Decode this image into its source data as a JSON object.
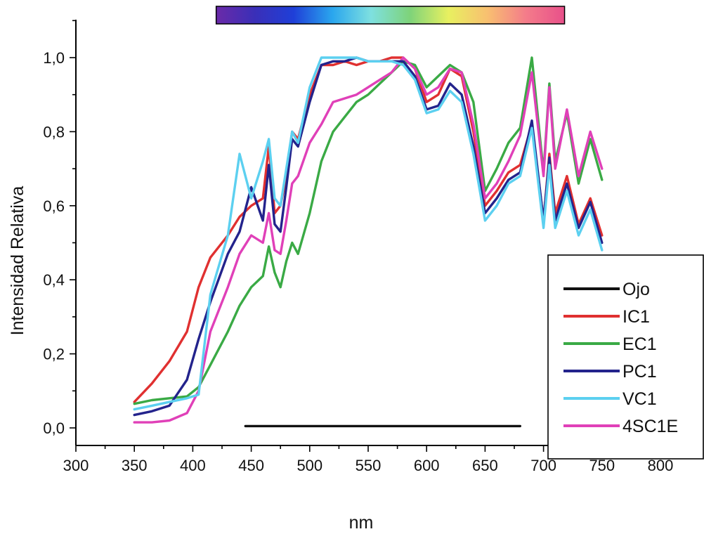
{
  "chart_data": {
    "type": "line",
    "title": "",
    "xlabel": "nm",
    "ylabel": "Intensidad Relativa",
    "xlim": [
      300,
      800
    ],
    "ylim": [
      -0.1,
      1.1
    ],
    "xticks": [
      300,
      350,
      400,
      450,
      500,
      550,
      600,
      650,
      700,
      750,
      800
    ],
    "xtick_labels": [
      "300",
      "350",
      "400",
      "450",
      "500",
      "550",
      "600",
      "650",
      "700",
      "750",
      "800"
    ],
    "yticks": [
      0.0,
      0.2,
      0.4,
      0.6,
      0.8,
      1.0
    ],
    "ytick_labels": [
      "0,0",
      "0,2",
      "0,4",
      "0,6",
      "0,8",
      "1,0"
    ],
    "legend_position": "bottom-right",
    "spectrum_bar": {
      "x_range": [
        420,
        718
      ],
      "colors": [
        "#6a2aa8",
        "#3a2fb8",
        "#1f3fd8",
        "#2aa6ee",
        "#7ee0e0",
        "#7ed37a",
        "#e8f060",
        "#f8c070",
        "#f47c8a",
        "#e8508a"
      ]
    },
    "series": [
      {
        "name": "Ojo",
        "color": "#111111",
        "x": [
          445,
          680
        ],
        "y": [
          0.005,
          0.005
        ]
      },
      {
        "name": "IC1",
        "color": "#e03030",
        "x": [
          350,
          365,
          380,
          395,
          405,
          415,
          430,
          440,
          450,
          460,
          465,
          470,
          475,
          480,
          485,
          490,
          500,
          510,
          520,
          530,
          540,
          550,
          560,
          570,
          580,
          590,
          600,
          610,
          620,
          630,
          640,
          650,
          660,
          670,
          680,
          690,
          700,
          705,
          710,
          720,
          730,
          740,
          750
        ],
        "y": [
          0.07,
          0.12,
          0.18,
          0.26,
          0.38,
          0.46,
          0.52,
          0.57,
          0.6,
          0.62,
          0.76,
          0.58,
          0.6,
          0.68,
          0.8,
          0.78,
          0.9,
          0.98,
          0.98,
          0.99,
          0.98,
          0.99,
          0.99,
          1.0,
          1.0,
          0.97,
          0.88,
          0.9,
          0.97,
          0.95,
          0.8,
          0.6,
          0.64,
          0.69,
          0.71,
          0.82,
          0.56,
          0.74,
          0.58,
          0.68,
          0.55,
          0.62,
          0.52
        ]
      },
      {
        "name": "EC1",
        "color": "#3aaa45",
        "x": [
          350,
          365,
          380,
          395,
          405,
          415,
          430,
          440,
          450,
          460,
          465,
          470,
          475,
          480,
          485,
          490,
          500,
          510,
          520,
          530,
          540,
          550,
          560,
          570,
          580,
          590,
          600,
          610,
          620,
          630,
          640,
          650,
          660,
          670,
          680,
          690,
          700,
          705,
          710,
          720,
          730,
          740,
          750
        ],
        "y": [
          0.065,
          0.075,
          0.08,
          0.085,
          0.11,
          0.17,
          0.26,
          0.33,
          0.38,
          0.41,
          0.49,
          0.42,
          0.38,
          0.45,
          0.5,
          0.47,
          0.58,
          0.72,
          0.8,
          0.84,
          0.88,
          0.9,
          0.93,
          0.96,
          0.99,
          0.98,
          0.92,
          0.95,
          0.98,
          0.96,
          0.88,
          0.64,
          0.7,
          0.77,
          0.81,
          1.0,
          0.69,
          0.93,
          0.72,
          0.85,
          0.66,
          0.78,
          0.67
        ]
      },
      {
        "name": "PC1",
        "color": "#23238c",
        "x": [
          350,
          365,
          380,
          395,
          405,
          415,
          430,
          440,
          450,
          460,
          465,
          470,
          475,
          480,
          485,
          490,
          500,
          510,
          520,
          530,
          540,
          550,
          560,
          570,
          580,
          590,
          600,
          610,
          620,
          630,
          640,
          650,
          660,
          670,
          680,
          690,
          700,
          705,
          710,
          720,
          730,
          740,
          750
        ],
        "y": [
          0.035,
          0.045,
          0.06,
          0.13,
          0.24,
          0.34,
          0.47,
          0.53,
          0.65,
          0.56,
          0.71,
          0.55,
          0.53,
          0.65,
          0.78,
          0.76,
          0.88,
          0.98,
          0.99,
          0.99,
          1.0,
          0.99,
          0.99,
          0.99,
          0.99,
          0.95,
          0.86,
          0.87,
          0.93,
          0.9,
          0.76,
          0.58,
          0.62,
          0.67,
          0.69,
          0.83,
          0.56,
          0.73,
          0.56,
          0.66,
          0.54,
          0.61,
          0.5
        ]
      },
      {
        "name": "VC1",
        "color": "#5cd0f0",
        "x": [
          350,
          365,
          380,
          395,
          405,
          415,
          430,
          440,
          450,
          460,
          465,
          470,
          475,
          480,
          485,
          490,
          500,
          510,
          520,
          530,
          540,
          550,
          560,
          570,
          580,
          590,
          600,
          610,
          620,
          630,
          640,
          650,
          660,
          670,
          680,
          690,
          700,
          705,
          710,
          720,
          730,
          740,
          750
        ],
        "y": [
          0.05,
          0.06,
          0.07,
          0.08,
          0.09,
          0.36,
          0.52,
          0.74,
          0.62,
          0.72,
          0.78,
          0.62,
          0.6,
          0.7,
          0.8,
          0.77,
          0.92,
          1.0,
          1.0,
          1.0,
          1.0,
          0.99,
          0.99,
          0.99,
          0.98,
          0.94,
          0.85,
          0.86,
          0.91,
          0.88,
          0.74,
          0.56,
          0.6,
          0.66,
          0.68,
          0.81,
          0.54,
          0.71,
          0.54,
          0.64,
          0.52,
          0.59,
          0.48
        ]
      },
      {
        "name": "4SC1E",
        "color": "#e040b8",
        "x": [
          350,
          365,
          380,
          395,
          405,
          415,
          430,
          440,
          450,
          460,
          465,
          470,
          475,
          480,
          485,
          490,
          500,
          510,
          520,
          530,
          540,
          550,
          560,
          570,
          580,
          590,
          600,
          610,
          620,
          630,
          640,
          650,
          660,
          670,
          680,
          690,
          700,
          705,
          710,
          720,
          730,
          740,
          750
        ],
        "y": [
          0.015,
          0.015,
          0.02,
          0.04,
          0.1,
          0.26,
          0.38,
          0.47,
          0.52,
          0.5,
          0.58,
          0.48,
          0.47,
          0.56,
          0.66,
          0.68,
          0.77,
          0.82,
          0.88,
          0.89,
          0.9,
          0.92,
          0.94,
          0.96,
          1.0,
          0.97,
          0.9,
          0.92,
          0.97,
          0.96,
          0.82,
          0.62,
          0.66,
          0.72,
          0.79,
          0.96,
          0.68,
          0.92,
          0.7,
          0.86,
          0.68,
          0.8,
          0.7
        ]
      }
    ]
  }
}
